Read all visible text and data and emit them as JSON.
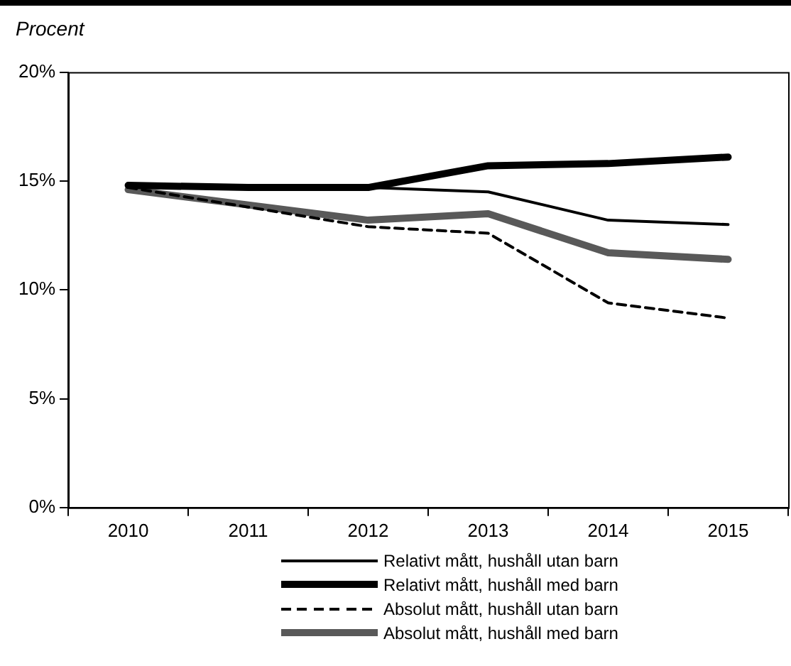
{
  "chart_data": {
    "type": "line",
    "ylabel": "Procent",
    "categories": [
      "2010",
      "2011",
      "2012",
      "2013",
      "2014",
      "2015"
    ],
    "series": [
      {
        "name": "Relativt mått, hushåll utan barn",
        "color": "#000000",
        "line_style": "solid",
        "values": [
          14.8,
          14.7,
          14.7,
          14.5,
          13.2,
          13.0
        ]
      },
      {
        "name": "Relativt mått, hushåll med barn",
        "color": "#000000",
        "line_style": "solid",
        "values": [
          14.8,
          14.7,
          14.7,
          15.7,
          15.8,
          16.1
        ]
      },
      {
        "name": "Absolut mått, hushåll utan barn",
        "color": "#000000",
        "line_style": "dashed",
        "values": [
          14.7,
          13.8,
          12.9,
          12.6,
          9.4,
          8.7
        ]
      },
      {
        "name": "Absolut mått, hushåll med barn",
        "color": "#595959",
        "line_style": "solid",
        "values": [
          14.6,
          13.9,
          13.2,
          13.5,
          11.7,
          11.4
        ]
      }
    ],
    "ylim": [
      0,
      20
    ],
    "yticks": [
      {
        "value": 0,
        "label": "0%"
      },
      {
        "value": 5,
        "label": "5%"
      },
      {
        "value": 10,
        "label": "10%"
      },
      {
        "value": 15,
        "label": "15%"
      },
      {
        "value": 20,
        "label": "20%"
      }
    ],
    "grid": false,
    "legend": "bottom",
    "marker": "none"
  }
}
